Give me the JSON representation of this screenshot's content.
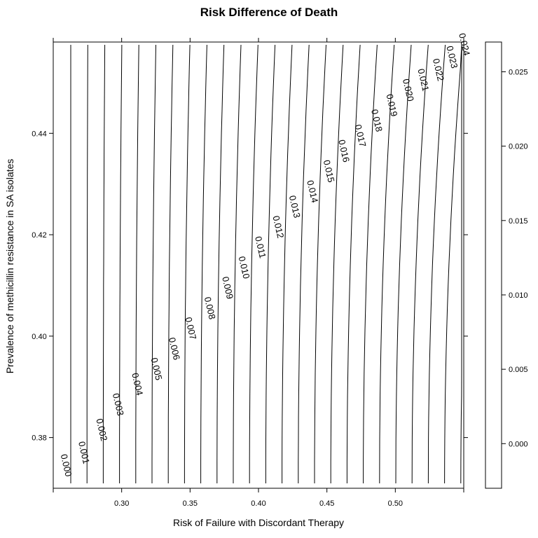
{
  "chart_data": {
    "type": "contour",
    "title": "Risk Difference of Death",
    "xlabel": "Risk of Failure with Discordant Therapy",
    "ylabel": "Prevalence of methicillin resistance in SA isolates",
    "xlim": [
      0.25,
      0.55
    ],
    "ylim": [
      0.37,
      0.458
    ],
    "x_ticks": [
      0.3,
      0.35,
      0.4,
      0.45,
      0.5
    ],
    "x_tick_labels": [
      "0.30",
      "0.35",
      "0.40",
      "0.45",
      "0.50"
    ],
    "y_ticks": [
      0.38,
      0.4,
      0.42,
      0.44
    ],
    "y_tick_labels": [
      "0.38",
      "0.40",
      "0.42",
      "0.44"
    ],
    "colorkey": {
      "ticks": [
        0.0,
        0.005,
        0.01,
        0.015,
        0.02,
        0.025
      ],
      "tick_labels": [
        "0.000",
        "0.005",
        "0.010",
        "0.015",
        "0.020",
        "0.025"
      ],
      "range": [
        -0.003,
        0.027
      ]
    },
    "contour_levels": [
      "0.000",
      "0.001",
      "0.002",
      "0.003",
      "0.004",
      "0.005",
      "0.006",
      "0.007",
      "0.008",
      "0.009",
      "0.010",
      "0.011",
      "0.012",
      "0.013",
      "0.014",
      "0.015",
      "0.016",
      "0.017",
      "0.018",
      "0.019",
      "0.020",
      "0.021",
      "0.022",
      "0.023",
      "0.024"
    ],
    "label_positions": [
      {
        "level": "0.000",
        "x": 0.259,
        "y": 0.3745
      },
      {
        "level": "0.001",
        "x": 0.272,
        "y": 0.377
      },
      {
        "level": "0.002",
        "x": 0.285,
        "y": 0.3815
      },
      {
        "level": "0.003",
        "x": 0.297,
        "y": 0.3865
      },
      {
        "level": "0.004",
        "x": 0.311,
        "y": 0.3905
      },
      {
        "level": "0.005",
        "x": 0.325,
        "y": 0.3935
      },
      {
        "level": "0.006",
        "x": 0.338,
        "y": 0.3975
      },
      {
        "level": "0.007",
        "x": 0.35,
        "y": 0.4015
      },
      {
        "level": "0.008",
        "x": 0.364,
        "y": 0.4055
      },
      {
        "level": "0.009",
        "x": 0.377,
        "y": 0.4095
      },
      {
        "level": "0.010",
        "x": 0.389,
        "y": 0.4135
      },
      {
        "level": "0.011",
        "x": 0.401,
        "y": 0.4175
      },
      {
        "level": "0.012",
        "x": 0.414,
        "y": 0.4215
      },
      {
        "level": "0.013",
        "x": 0.426,
        "y": 0.4255
      },
      {
        "level": "0.014",
        "x": 0.439,
        "y": 0.4285
      },
      {
        "level": "0.015",
        "x": 0.451,
        "y": 0.4325
      },
      {
        "level": "0.016",
        "x": 0.462,
        "y": 0.4365
      },
      {
        "level": "0.017",
        "x": 0.474,
        "y": 0.4395
      },
      {
        "level": "0.018",
        "x": 0.486,
        "y": 0.4425
      },
      {
        "level": "0.019",
        "x": 0.497,
        "y": 0.4455
      },
      {
        "level": "0.020",
        "x": 0.509,
        "y": 0.4485
      },
      {
        "level": "0.021",
        "x": 0.52,
        "y": 0.4505
      },
      {
        "level": "0.022",
        "x": 0.531,
        "y": 0.4525
      },
      {
        "level": "0.023",
        "x": 0.541,
        "y": 0.455
      },
      {
        "level": "0.024",
        "x": 0.55,
        "y": 0.4575
      }
    ]
  }
}
